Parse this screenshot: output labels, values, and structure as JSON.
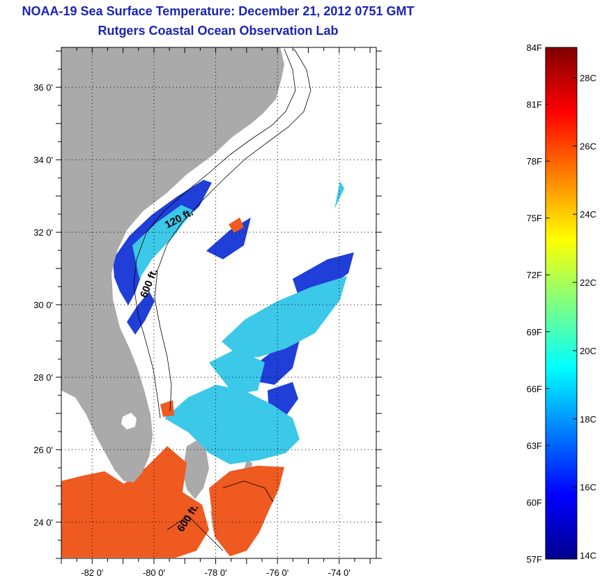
{
  "title": {
    "line1": "NOAA-19 Sea Surface Temperature:  December 21, 2012 0751 GMT",
    "line2": "Rutgers Coastal Ocean Observation Lab"
  },
  "map": {
    "lon_range": [
      -83,
      -72.8
    ],
    "lat_range": [
      23,
      37.1
    ],
    "x_ticks": [
      "-82 0'",
      "-80 0'",
      "-78 0'",
      "-76 0'",
      "-74 0'"
    ],
    "y_ticks": [
      "36 0'",
      "34 0'",
      "32 0'",
      "30 0'",
      "28 0'",
      "26 0'",
      "24 0'"
    ],
    "isobath_labels": [
      "120 ft.",
      "600 ft.",
      "600 ft."
    ],
    "colors": {
      "land": "#aaaaaa",
      "sea_cold": "#1f3fd8",
      "sea_warm": "#ee5a20"
    }
  },
  "colorbar": {
    "fahrenheit_labels": [
      "84F",
      "81F",
      "78F",
      "75F",
      "72F",
      "69F",
      "66F",
      "63F",
      "60F",
      "57F"
    ],
    "celsius_labels": [
      "28C",
      "26C",
      "24C",
      "22C",
      "20C",
      "18C",
      "16C",
      "14C"
    ],
    "colormap": [
      "#00008f",
      "#0000ff",
      "#0080ff",
      "#00ffff",
      "#80ff80",
      "#ffff00",
      "#ff8000",
      "#ff0000",
      "#800000"
    ]
  }
}
